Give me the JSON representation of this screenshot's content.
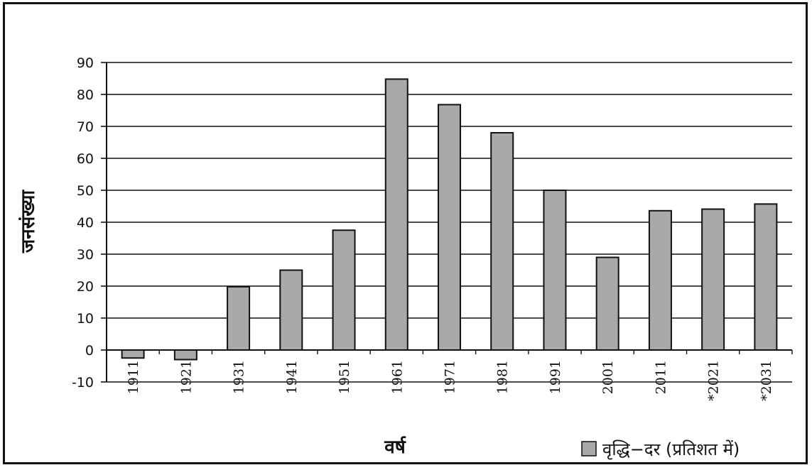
{
  "chart_data": {
    "type": "bar",
    "title": "",
    "xlabel": "वर्ष",
    "ylabel": "जनसंख्या",
    "categories": [
      "1911",
      "1921",
      "1931",
      "1941",
      "1951",
      "1961",
      "1971",
      "1981",
      "1991",
      "2001",
      "2011",
      "*2021",
      "*2031"
    ],
    "series": [
      {
        "name": "वृद्धि−दर (प्रतिशत में)",
        "values": [
          -2.5,
          -3,
          19.8,
          25,
          37.5,
          84.8,
          76.8,
          68,
          50,
          29,
          43.6,
          44.1,
          45.7
        ]
      }
    ],
    "ylim": [
      -10,
      90
    ],
    "yticks": [
      90,
      80,
      70,
      60,
      50,
      40,
      30,
      20,
      10,
      0,
      -10
    ],
    "grid": true,
    "legend_position": "bottom-right",
    "bar_color": "#a9a9a9",
    "bar_outline_color": "#111111",
    "grid_color": "#111111"
  }
}
